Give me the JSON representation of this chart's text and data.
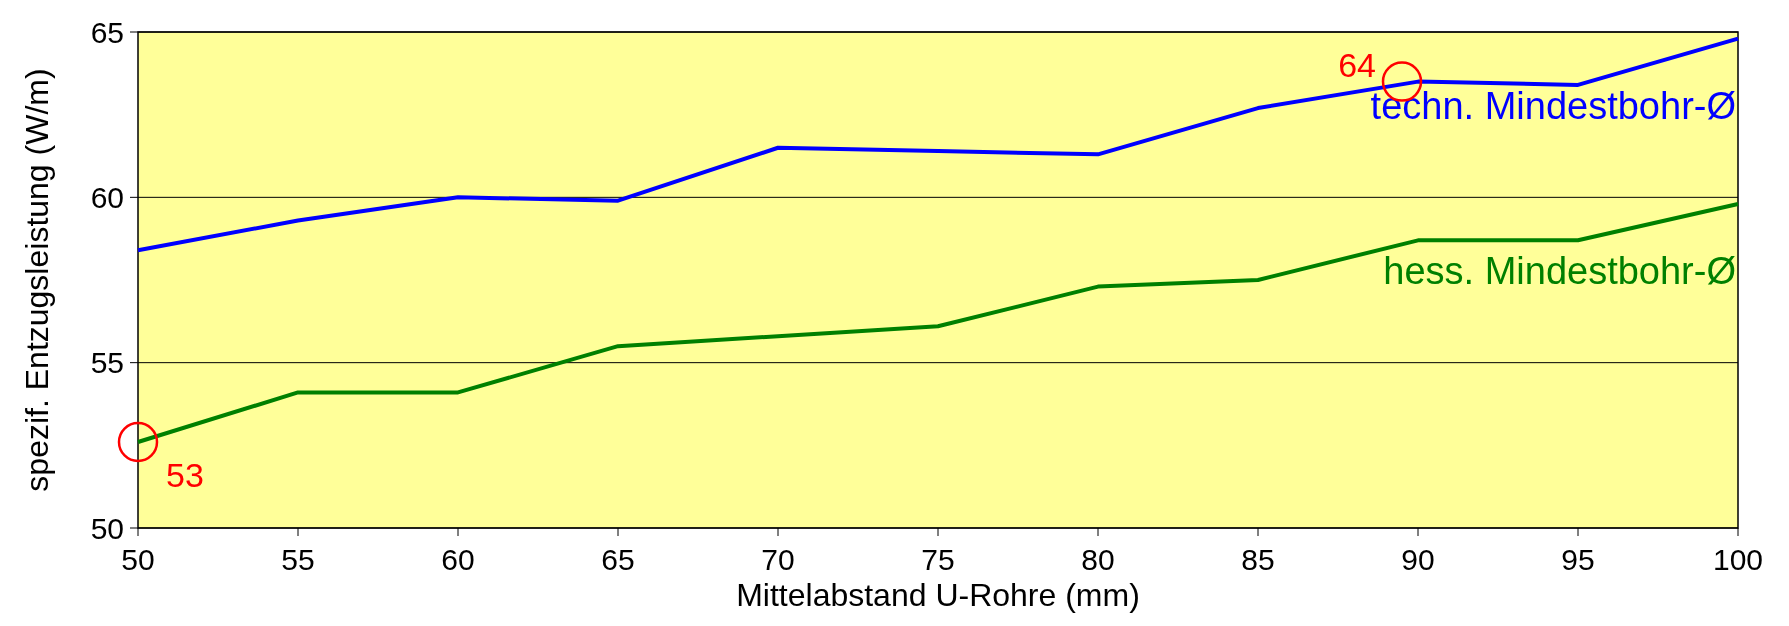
{
  "chart_data": {
    "type": "line",
    "xlabel": "Mittelabstand U-Rohre (mm)",
    "ylabel": "spezif. Entzugsleistung (W/m)",
    "x": [
      50,
      55,
      60,
      65,
      70,
      75,
      80,
      85,
      90,
      95,
      100
    ],
    "series": [
      {
        "name": "techn. Mindestbohr-Ø",
        "color": "#0000ff",
        "values": [
          58.4,
          59.3,
          60.0,
          59.9,
          61.5,
          61.4,
          61.3,
          62.7,
          63.5,
          63.4,
          64.8
        ]
      },
      {
        "name": "hess. Mindestbohr-Ø",
        "color": "#008000",
        "values": [
          52.6,
          54.1,
          54.1,
          55.5,
          55.8,
          56.1,
          57.3,
          57.5,
          58.7,
          58.7,
          59.8
        ]
      }
    ],
    "xlim": [
      50,
      100
    ],
    "xticks": [
      50,
      55,
      60,
      65,
      70,
      75,
      80,
      85,
      90,
      95,
      100
    ],
    "ylim": [
      50,
      65
    ],
    "yticks": [
      50,
      55,
      60,
      65
    ],
    "grid": "y",
    "legend": false,
    "marker": "none",
    "line_style": "solid",
    "annotations": [
      {
        "text": "64",
        "x": 89.5,
        "y": 63.5
      },
      {
        "text": "53",
        "x": 50,
        "y": 52.6
      }
    ]
  }
}
